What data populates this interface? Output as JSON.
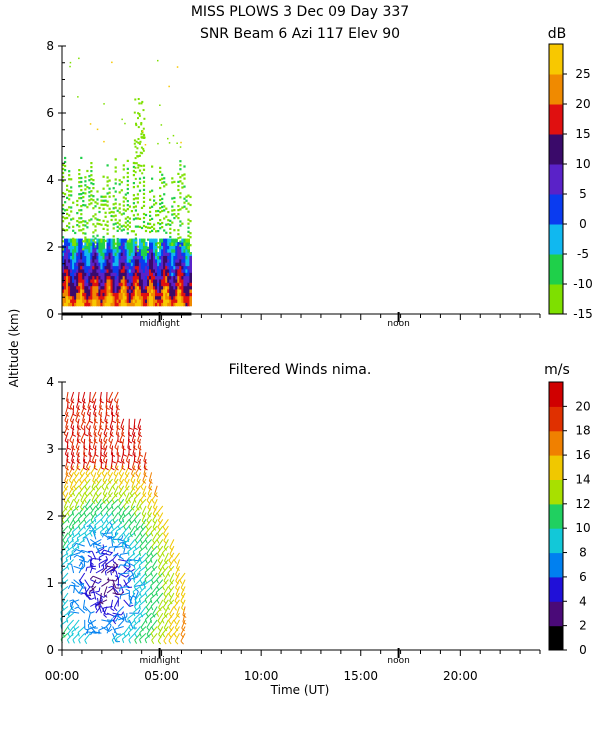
{
  "chart_data": [
    {
      "type": "heatmap",
      "title_line1": "MISS PLOWS    3 Dec 09 Day 337",
      "title_line2": "SNR Beam 6 Azi 117 Elev 90",
      "ylabel": "Altitude (km)",
      "xlim": [
        0,
        24
      ],
      "ylim": [
        0,
        8
      ],
      "yticks": [
        "0",
        "2",
        "4",
        "6",
        "8"
      ],
      "x_markers": [
        {
          "label": "midnight",
          "x": 4.9
        },
        {
          "label": "noon",
          "x": 16.9
        }
      ],
      "data_extent_hours": [
        0,
        6.5
      ],
      "colorbar": {
        "unit": "dB",
        "levels": [
          -15,
          -10,
          -5,
          0,
          5,
          10,
          15,
          20,
          25
        ],
        "colors": [
          "#7ee000",
          "#1fd04a",
          "#10b8f0",
          "#0a3bf0",
          "#5a22c8",
          "#3a0a6a",
          "#e01010",
          "#f08a00",
          "#f8c800"
        ]
      }
    },
    {
      "type": "scatter",
      "title": "Filtered Winds nima.",
      "xlabel": "Time (UT)",
      "ylabel": "Altitude (km)",
      "xlim": [
        0,
        24
      ],
      "ylim": [
        0,
        4
      ],
      "xticks": [
        "00:00",
        "05:00",
        "10:00",
        "15:00",
        "20:00"
      ],
      "yticks": [
        "0",
        "1",
        "2",
        "3",
        "4"
      ],
      "x_markers": [
        {
          "label": "midnight",
          "x": 4.9
        },
        {
          "label": "noon",
          "x": 16.9
        }
      ],
      "data_extent_hours": [
        0,
        6.3
      ],
      "colorbar": {
        "unit": "m/s",
        "levels": [
          0,
          2,
          4,
          6,
          8,
          10,
          12,
          14,
          16,
          18,
          20
        ],
        "colors": [
          "#000000",
          "#4a0a78",
          "#2010d8",
          "#0080f0",
          "#12c8d8",
          "#20d060",
          "#a8e000",
          "#f0c800",
          "#f08000",
          "#e03000",
          "#d00000"
        ]
      }
    }
  ]
}
